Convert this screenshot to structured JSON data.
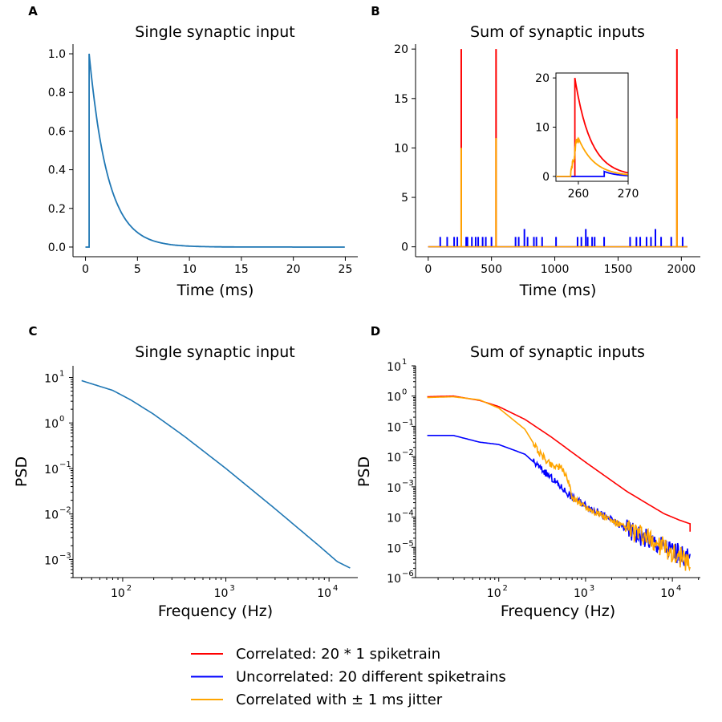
{
  "chart_data": [
    {
      "panel": "A",
      "type": "line",
      "title": "Single synaptic input",
      "xlabel": "Time (ms)",
      "ylabel": "",
      "xlim": [
        -1.2,
        26.2
      ],
      "ylim": [
        -0.05,
        1.05
      ],
      "xticks": [
        0,
        5,
        10,
        15,
        20,
        25
      ],
      "yticks": [
        0.0,
        0.2,
        0.4,
        0.6,
        0.8,
        1.0
      ],
      "ytick_labels": [
        "0.0",
        "0.2",
        "0.4",
        "0.6",
        "0.8",
        "1.0"
      ],
      "series": [
        {
          "color": "#1f77b4",
          "onset_ms": 0.35,
          "peak": 1.0,
          "decay_tau_ms": 1.8,
          "t_end_ms": 25
        }
      ]
    },
    {
      "panel": "B",
      "type": "line",
      "title": "Sum of synaptic inputs",
      "xlabel": "Time (ms)",
      "ylabel": "",
      "xlim": [
        -100,
        2150
      ],
      "ylim": [
        -1,
        20.5
      ],
      "xticks": [
        0,
        500,
        1000,
        1500,
        2000
      ],
      "yticks": [
        0,
        5,
        10,
        15,
        20
      ],
      "series": [
        {
          "color": "#ff0000",
          "events": [
            {
              "t": 261,
              "v": 20
            },
            {
              "t": 536,
              "v": 20
            },
            {
              "t": 1965,
              "v": 20
            }
          ]
        },
        {
          "color": "#0000ff",
          "events": [
            {
              "t": 95,
              "v": 1
            },
            {
              "t": 150,
              "v": 1
            },
            {
              "t": 205,
              "v": 1
            },
            {
              "t": 230,
              "v": 1
            },
            {
              "t": 300,
              "v": 1
            },
            {
              "t": 310,
              "v": 1
            },
            {
              "t": 345,
              "v": 1
            },
            {
              "t": 375,
              "v": 1
            },
            {
              "t": 395,
              "v": 1
            },
            {
              "t": 430,
              "v": 1
            },
            {
              "t": 455,
              "v": 1
            },
            {
              "t": 500,
              "v": 1
            },
            {
              "t": 690,
              "v": 1
            },
            {
              "t": 715,
              "v": 1
            },
            {
              "t": 760,
              "v": 1.8
            },
            {
              "t": 785,
              "v": 1
            },
            {
              "t": 835,
              "v": 1
            },
            {
              "t": 855,
              "v": 1
            },
            {
              "t": 900,
              "v": 1
            },
            {
              "t": 1010,
              "v": 1
            },
            {
              "t": 1180,
              "v": 1
            },
            {
              "t": 1210,
              "v": 1
            },
            {
              "t": 1245,
              "v": 1.8
            },
            {
              "t": 1260,
              "v": 1
            },
            {
              "t": 1295,
              "v": 1
            },
            {
              "t": 1315,
              "v": 1
            },
            {
              "t": 1390,
              "v": 1
            },
            {
              "t": 1595,
              "v": 1
            },
            {
              "t": 1645,
              "v": 1
            },
            {
              "t": 1675,
              "v": 1
            },
            {
              "t": 1725,
              "v": 1
            },
            {
              "t": 1760,
              "v": 1
            },
            {
              "t": 1795,
              "v": 1.8
            },
            {
              "t": 1840,
              "v": 1
            },
            {
              "t": 1920,
              "v": 1
            },
            {
              "t": 2010,
              "v": 1
            }
          ]
        },
        {
          "color": "#ffa500",
          "events": [
            {
              "t": 261,
              "v": 10
            },
            {
              "t": 536,
              "v": 11
            },
            {
              "t": 1965,
              "v": 13
            }
          ]
        }
      ],
      "inset": {
        "xlim": [
          255.5,
          270
        ],
        "ylim": [
          -1,
          21
        ],
        "xticks": [
          260,
          270
        ],
        "yticks": [
          0,
          10,
          20
        ],
        "series": [
          {
            "color": "#ff0000",
            "onset": 259.3,
            "peak": 20,
            "decay_tau_ms": 3.2
          },
          {
            "color": "#0000ff",
            "onset": 265.2,
            "peak": 1,
            "decay_tau_ms": 2.5
          },
          {
            "color": "#ffa500",
            "smooth_peak": 10,
            "peak_at": 261.2,
            "jitter_ms": 1
          }
        ]
      }
    },
    {
      "panel": "C",
      "type": "line",
      "title": "Single synaptic input",
      "xlabel": "Frequency (Hz)",
      "ylabel": "PSD",
      "xscale": "log",
      "yscale": "log",
      "xlim": [
        33,
        19000
      ],
      "ylim": [
        0.0004,
        18
      ],
      "xticks": [
        100,
        1000,
        10000
      ],
      "xtick_exponents": [
        "2",
        "3",
        "4"
      ],
      "yticks": [
        0.001,
        0.01,
        0.1,
        1,
        10
      ],
      "ytick_exponents": [
        "−3",
        "−2",
        "−1",
        "0",
        "1"
      ],
      "tick_base": "10",
      "series": [
        {
          "color": "#1f77b4",
          "x": [
            40,
            80,
            120,
            200,
            400,
            1000,
            3000,
            8000,
            12000,
            16000
          ],
          "y": [
            8.5,
            5.2,
            3.2,
            1.55,
            0.5,
            0.1,
            0.013,
            0.002,
            0.0009,
            0.00065
          ]
        }
      ]
    },
    {
      "panel": "D",
      "type": "line",
      "title": "Sum of synaptic inputs",
      "xlabel": "Frequency (Hz)",
      "ylabel": "PSD",
      "xscale": "log",
      "yscale": "log",
      "xlim": [
        11,
        21000
      ],
      "ylim": [
        1e-06,
        10
      ],
      "xticks": [
        100,
        1000,
        10000
      ],
      "xtick_exponents": [
        "2",
        "3",
        "4"
      ],
      "yticks": [
        1e-06,
        1e-05,
        0.0001,
        0.001,
        0.01,
        0.1,
        1,
        10
      ],
      "ytick_exponents": [
        "−6",
        "−5",
        "−4",
        "−3",
        "−2",
        "−1",
        "0",
        "1"
      ],
      "tick_base": "10",
      "series": [
        {
          "name": "Correlated: 20 * 1 spiketrain",
          "color": "#ff0000",
          "x": [
            15,
            30,
            60,
            100,
            200,
            400,
            1000,
            3000,
            8000,
            12000,
            16000
          ],
          "y": [
            0.95,
            1.0,
            0.72,
            0.45,
            0.17,
            0.045,
            0.0065,
            0.0007,
            0.00013,
            8e-05,
            6e-05
          ]
        },
        {
          "name": "Uncorrelated: 20 different spiketrains",
          "color": "#0000ff",
          "x": [
            15,
            30,
            60,
            100,
            200,
            400,
            700,
            1000,
            3000,
            8000,
            12000,
            16000
          ],
          "y": [
            0.05,
            0.05,
            0.03,
            0.025,
            0.012,
            0.002,
            0.00045,
            0.00025,
            4e-05,
            1e-05,
            6e-06,
            4e-06
          ]
        },
        {
          "name": "Correlated with ± 1 ms jitter",
          "color": "#ffa500",
          "x": [
            15,
            30,
            60,
            100,
            200,
            300,
            400,
            500,
            600,
            700,
            1000,
            3000,
            8000,
            12000,
            16000
          ],
          "y": [
            0.9,
            0.95,
            0.75,
            0.4,
            0.08,
            0.012,
            0.0055,
            0.0045,
            0.0025,
            0.00045,
            0.00022,
            4e-05,
            1e-05,
            5e-06,
            3e-06
          ]
        }
      ]
    }
  ],
  "legend": [
    {
      "label": "Correlated: 20 * 1 spiketrain",
      "color": "#ff0000"
    },
    {
      "label": "Uncorrelated: 20 different spiketrains",
      "color": "#0000ff"
    },
    {
      "label": "Correlated with ± 1 ms jitter",
      "color": "#ffa500"
    }
  ]
}
